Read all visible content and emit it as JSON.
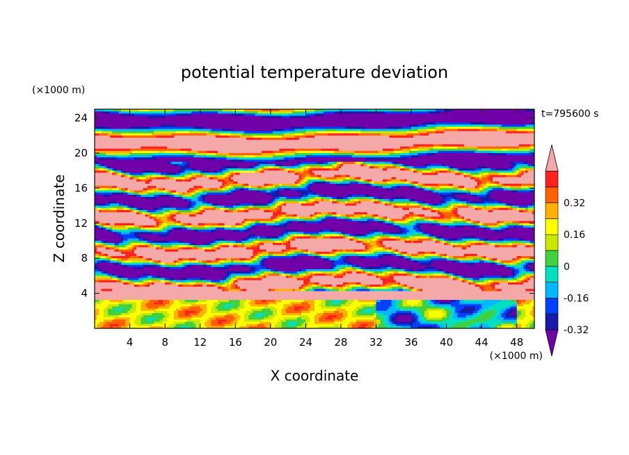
{
  "chart_data": {
    "type": "heatmap",
    "title": "potential temperature deviation",
    "xlabel": "X coordinate",
    "ylabel": "Z coordinate",
    "x_unit": "(×1000 m)",
    "y_unit": "(×1000 m)",
    "time_label": "t=795600 s",
    "xlim": [
      0,
      50
    ],
    "ylim": [
      0,
      25
    ],
    "xticks": [
      "4",
      "8",
      "12",
      "16",
      "20",
      "24",
      "28",
      "32",
      "36",
      "40",
      "44",
      "48"
    ],
    "yticks": [
      "4",
      "8",
      "12",
      "16",
      "20",
      "24"
    ],
    "colorbar": {
      "levels": [
        -0.4,
        -0.32,
        -0.24,
        -0.16,
        -0.08,
        0,
        0.08,
        0.16,
        0.24,
        0.32,
        0.4
      ],
      "colors": [
        "#7000a8",
        "#1a1aa8",
        "#0040ff",
        "#00b8ff",
        "#00e0c0",
        "#40d040",
        "#c8e800",
        "#ffff00",
        "#ffb000",
        "#ff6000",
        "#ff2020",
        "#f4a8a8"
      ],
      "tick_labels": [
        "0.32",
        "0.16",
        "0",
        "-0.16",
        "-0.32"
      ],
      "extend": "both"
    }
  }
}
